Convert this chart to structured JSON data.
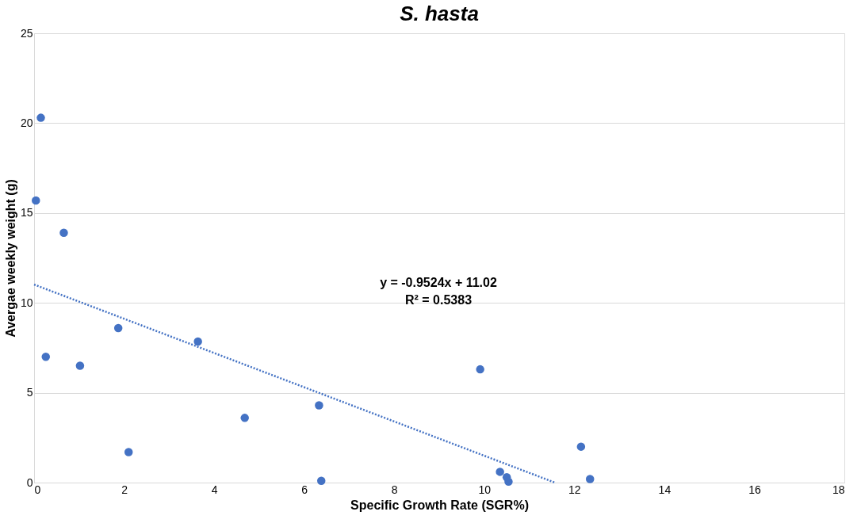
{
  "chart_data": {
    "type": "scatter",
    "title": "S. hasta",
    "xlabel": "Specific Growth Rate  (SGR%)",
    "ylabel": "Avergae weekly weight (g)",
    "series": [
      {
        "color": "#4472c4",
        "marker": "circle",
        "x": [
          0.15,
          0.04,
          0.66,
          0.26,
          1.02,
          1.87,
          2.1,
          3.64,
          4.68,
          6.33,
          6.38,
          9.91,
          10.35,
          10.5,
          10.54,
          12.15,
          12.35
        ],
        "values": [
          20.3,
          15.7,
          13.9,
          7.0,
          6.5,
          8.6,
          1.7,
          7.85,
          3.6,
          4.3,
          0.1,
          6.3,
          0.6,
          0.3,
          0.05,
          2.0,
          0.2
        ]
      },
      {
        "type": "line",
        "color": "#4472c4",
        "line_style": "dotted",
        "x": [
          0,
          11.57
        ],
        "values": [
          11.02,
          0
        ]
      }
    ],
    "annotations": [
      "y = -0.9524x + 11.02",
      "R² = 0.5383"
    ],
    "xlim": [
      0,
      18
    ],
    "xticks": [
      0,
      2,
      4,
      6,
      8,
      10,
      12,
      14,
      16,
      18
    ],
    "ylim": [
      0,
      25
    ],
    "yticks": [
      0,
      5,
      10,
      15,
      20,
      25
    ],
    "grid": "y"
  }
}
